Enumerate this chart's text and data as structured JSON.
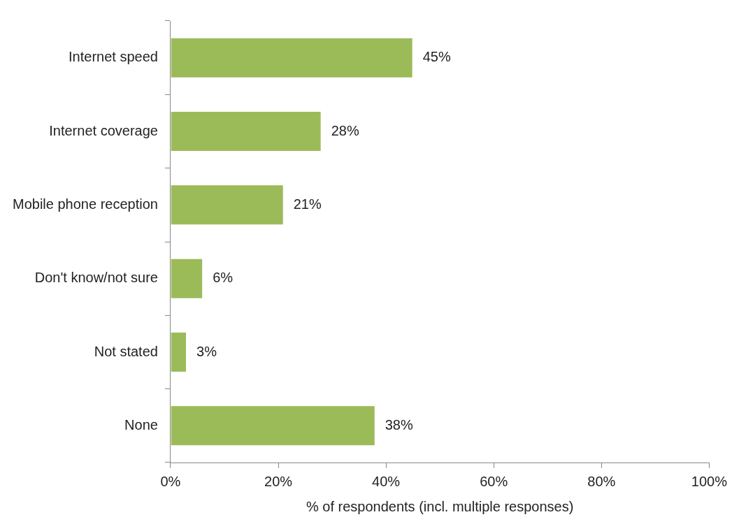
{
  "chart_data": {
    "type": "bar",
    "orientation": "horizontal",
    "categories": [
      "Internet speed",
      "Internet coverage",
      "Mobile phone reception",
      "Don't know/not sure",
      "Not stated",
      "None"
    ],
    "values": [
      45,
      28,
      21,
      6,
      3,
      38
    ],
    "value_labels": [
      "45%",
      "28%",
      "21%",
      "6%",
      "3%",
      "38%"
    ],
    "color": "#9bbb59",
    "xlim": [
      0,
      100
    ],
    "xticks": [
      {
        "value": 0,
        "label": "0%"
      },
      {
        "value": 20,
        "label": "20%"
      },
      {
        "value": 40,
        "label": "40%"
      },
      {
        "value": 60,
        "label": "60%"
      },
      {
        "value": 80,
        "label": "80%"
      },
      {
        "value": 100,
        "label": "100%"
      }
    ],
    "xlabel": "% of respondents (incl. multiple responses)",
    "grid": false,
    "legend": false
  }
}
